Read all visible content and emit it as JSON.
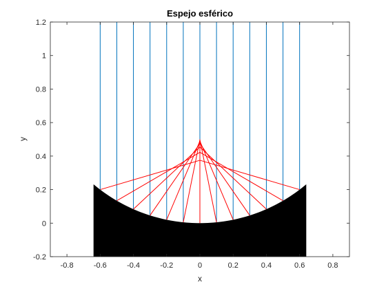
{
  "chart_data": {
    "type": "line",
    "title": "Espejo esférico",
    "xlabel": "x",
    "ylabel": "y",
    "xlim": [
      -0.9,
      0.9
    ],
    "ylim": [
      -0.2,
      1.2
    ],
    "xticks": [
      "-0.8",
      "-0.6",
      "-0.4",
      "-0.2",
      "0",
      "0.2",
      "0.4",
      "0.6",
      "0.8"
    ],
    "yticks": [
      "-0.2",
      "0",
      "0.2",
      "0.4",
      "0.6",
      "0.8",
      "1",
      "1.2"
    ],
    "grid": false,
    "mirror": {
      "shape": "spherical",
      "radius": 1,
      "x_range": [
        -0.64,
        0.64
      ],
      "surface_y_at_center": 0,
      "fill_to_y": -0.2,
      "color": "#000000"
    },
    "incident_rays": {
      "x": [
        -0.6,
        -0.5,
        -0.4,
        -0.3,
        -0.2,
        -0.1,
        0,
        0.1,
        0.2,
        0.3,
        0.4,
        0.5,
        0.6
      ],
      "y_top": 1.2,
      "color": "#0072bd"
    },
    "reflected_rays": {
      "from_x": [
        -0.6,
        -0.5,
        -0.4,
        -0.3,
        -0.2,
        -0.1,
        0,
        0.1,
        0.2,
        0.3,
        0.4,
        0.5,
        0.6
      ],
      "end_x": 0,
      "color": "#ff0000"
    }
  }
}
